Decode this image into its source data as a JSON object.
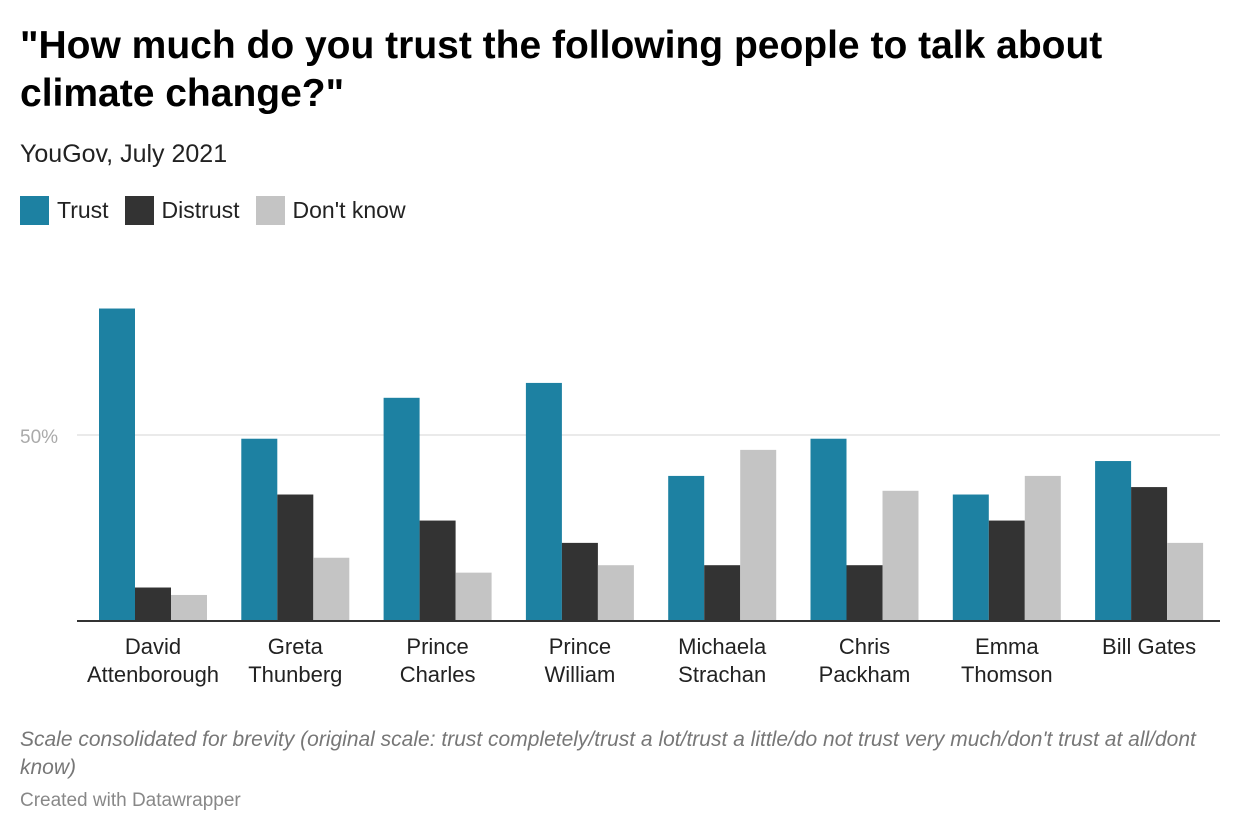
{
  "title": "\"How much do you trust the following people to talk about climate change?\"",
  "subtitle": "YouGov, July 2021",
  "note": "Scale consolidated for brevity (original scale: trust completely/trust a lot/trust a little/do not trust very much/don't trust at all/dont know)",
  "credit": "Created with Datawrapper",
  "legend": [
    {
      "label": "Trust",
      "color": "#1d81a2"
    },
    {
      "label": "Distrust",
      "color": "#333333"
    },
    {
      "label": "Don't know",
      "color": "#c4c4c4"
    }
  ],
  "chart_data": {
    "type": "bar",
    "categories": [
      [
        "David",
        "Attenborough"
      ],
      [
        "Greta",
        "Thunberg"
      ],
      [
        "Prince",
        "Charles"
      ],
      [
        "Prince",
        "William"
      ],
      [
        "Michaela",
        "Strachan"
      ],
      [
        "Chris",
        "Packham"
      ],
      [
        "Emma",
        "Thomson"
      ],
      [
        "Bill Gates"
      ]
    ],
    "series": [
      {
        "name": "Trust",
        "color": "#1d81a2",
        "values": [
          84,
          49,
          60,
          64,
          39,
          49,
          34,
          43
        ]
      },
      {
        "name": "Distrust",
        "color": "#333333",
        "values": [
          9,
          34,
          27,
          21,
          15,
          15,
          27,
          36
        ]
      },
      {
        "name": "Don't know",
        "color": "#c4c4c4",
        "values": [
          7,
          17,
          13,
          15,
          46,
          35,
          39,
          21
        ]
      }
    ],
    "yticks": [
      {
        "value": 50,
        "label": "50%"
      }
    ],
    "ylim": [
      0,
      90
    ],
    "grid": true,
    "legend_position": "top-left"
  }
}
